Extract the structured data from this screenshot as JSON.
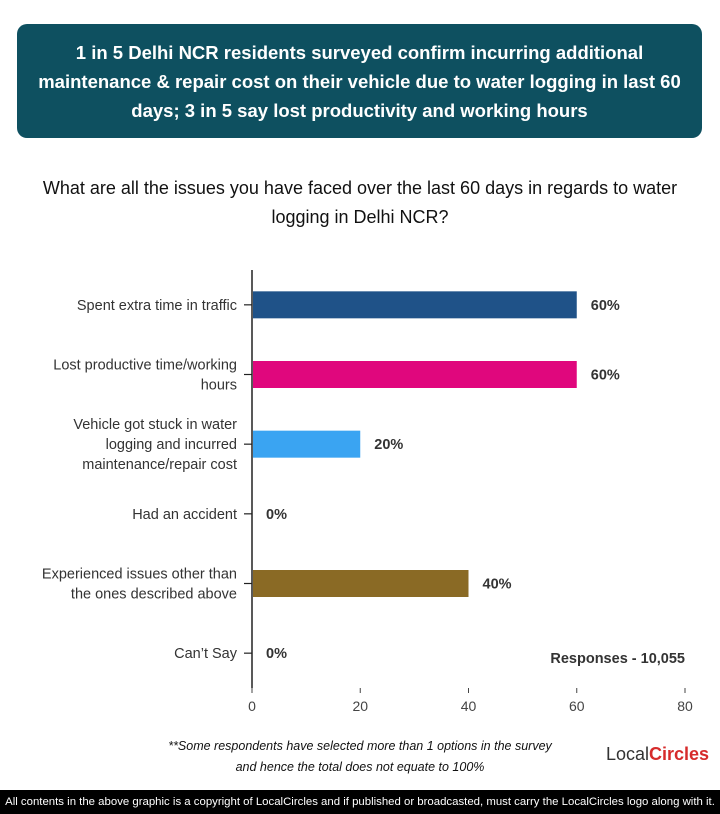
{
  "banner": {
    "text": "1 in 5 Delhi NCR residents surveyed confirm incurring additional maintenance & repair cost on their vehicle due to water logging in last 60 days; 3 in 5 say lost productivity and working hours",
    "background": "#0e5060"
  },
  "question": "What are all the issues you have faced over the last 60 days in regards to water logging in Delhi NCR?",
  "chart_data": {
    "type": "bar",
    "orientation": "horizontal",
    "categories": [
      [
        "Spent extra time in traffic"
      ],
      [
        "Lost productive time/working",
        "hours"
      ],
      [
        "Vehicle got stuck in water",
        "logging and incurred",
        "maintenance/repair cost"
      ],
      [
        "Had an accident"
      ],
      [
        "Experienced issues other than",
        "the ones described above"
      ],
      [
        "Can’t Say"
      ]
    ],
    "values": [
      60,
      60,
      20,
      0,
      40,
      0
    ],
    "value_labels": [
      "60%",
      "60%",
      "20%",
      "0%",
      "40%",
      "0%"
    ],
    "colors": [
      "#1f5288",
      "#e0077d",
      "#3aa4f2",
      "#999999",
      "#8a6a25",
      "#999999"
    ],
    "xlim": [
      0,
      80
    ],
    "xticks": [
      0,
      20,
      40,
      60,
      80
    ],
    "grid": false,
    "annotation": "Responses - 10,055"
  },
  "footnote": {
    "line1": "**Some respondents have selected more than 1 options in the survey",
    "line2": "and hence the total does not equate to 100%"
  },
  "logo": {
    "part1": "Local",
    "part2": "Circles"
  },
  "copyright": "All contents in the above graphic is a copyright of LocalCircles and if published or broadcasted, must carry the LocalCircles logo along with it."
}
